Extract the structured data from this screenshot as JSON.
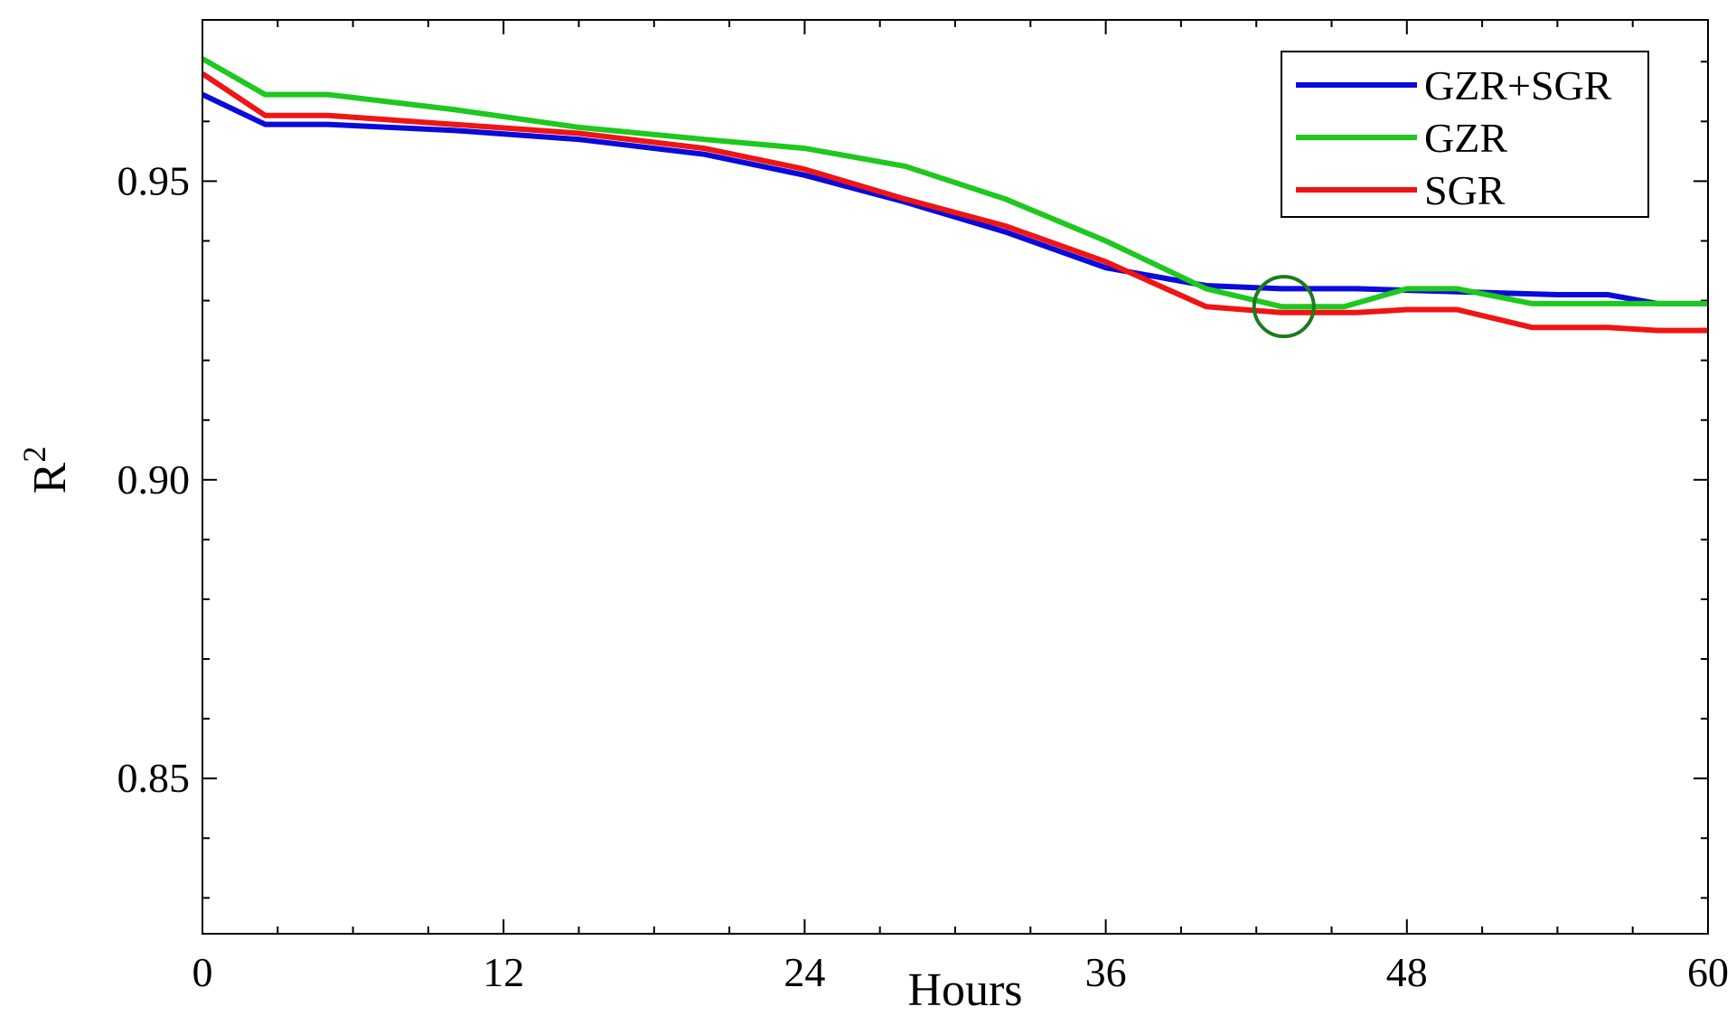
{
  "chart_data": {
    "type": "line",
    "xlabel": "Hours",
    "ylabel": "R",
    "ylabel_superscript": "2",
    "xlim": [
      0,
      60
    ],
    "ylim": [
      0.824,
      0.977
    ],
    "x_ticks": [
      0,
      12,
      24,
      36,
      48,
      60
    ],
    "y_ticks": [
      0.85,
      0.9,
      0.95
    ],
    "x_tick_labels": [
      "0",
      "12",
      "24",
      "36",
      "48",
      "60"
    ],
    "y_tick_labels": [
      "0.85",
      "0.90",
      "0.95"
    ],
    "grid": false,
    "legend_position": "top-right",
    "series": [
      {
        "name": "GZR+SGR",
        "color": "#0a0adc",
        "x": [
          0,
          2.5,
          5,
          10,
          15,
          20,
          24,
          28,
          32,
          36,
          40,
          43,
          46,
          50,
          54,
          56,
          58,
          60
        ],
        "y": [
          0.9645,
          0.9595,
          0.9595,
          0.9585,
          0.957,
          0.9545,
          0.951,
          0.9465,
          0.9415,
          0.9355,
          0.9325,
          0.932,
          0.932,
          0.9315,
          0.931,
          0.931,
          0.9295,
          0.9295
        ]
      },
      {
        "name": "GZR",
        "color": "#1ec81e",
        "x": [
          0,
          2.5,
          5,
          10,
          15,
          20,
          24,
          28,
          32,
          36,
          40,
          43,
          45.5,
          48,
          50,
          53,
          56,
          58,
          60
        ],
        "y": [
          0.9705,
          0.9645,
          0.9645,
          0.962,
          0.959,
          0.957,
          0.9555,
          0.9525,
          0.947,
          0.94,
          0.932,
          0.929,
          0.929,
          0.932,
          0.932,
          0.9295,
          0.9295,
          0.9295,
          0.9295
        ]
      },
      {
        "name": "SGR",
        "color": "#f01414",
        "x": [
          0,
          2.5,
          5,
          10,
          15,
          20,
          24,
          28,
          32,
          36,
          40,
          43,
          46,
          48,
          50,
          53,
          56,
          58,
          60
        ],
        "y": [
          0.968,
          0.961,
          0.961,
          0.9595,
          0.958,
          0.9555,
          0.952,
          0.947,
          0.9425,
          0.9365,
          0.929,
          0.928,
          0.928,
          0.9285,
          0.9285,
          0.9255,
          0.9255,
          0.925,
          0.925
        ]
      }
    ],
    "annotations": [
      {
        "type": "circle",
        "x": 43.1,
        "y": 0.929,
        "color": "#1e7a1e"
      }
    ]
  }
}
